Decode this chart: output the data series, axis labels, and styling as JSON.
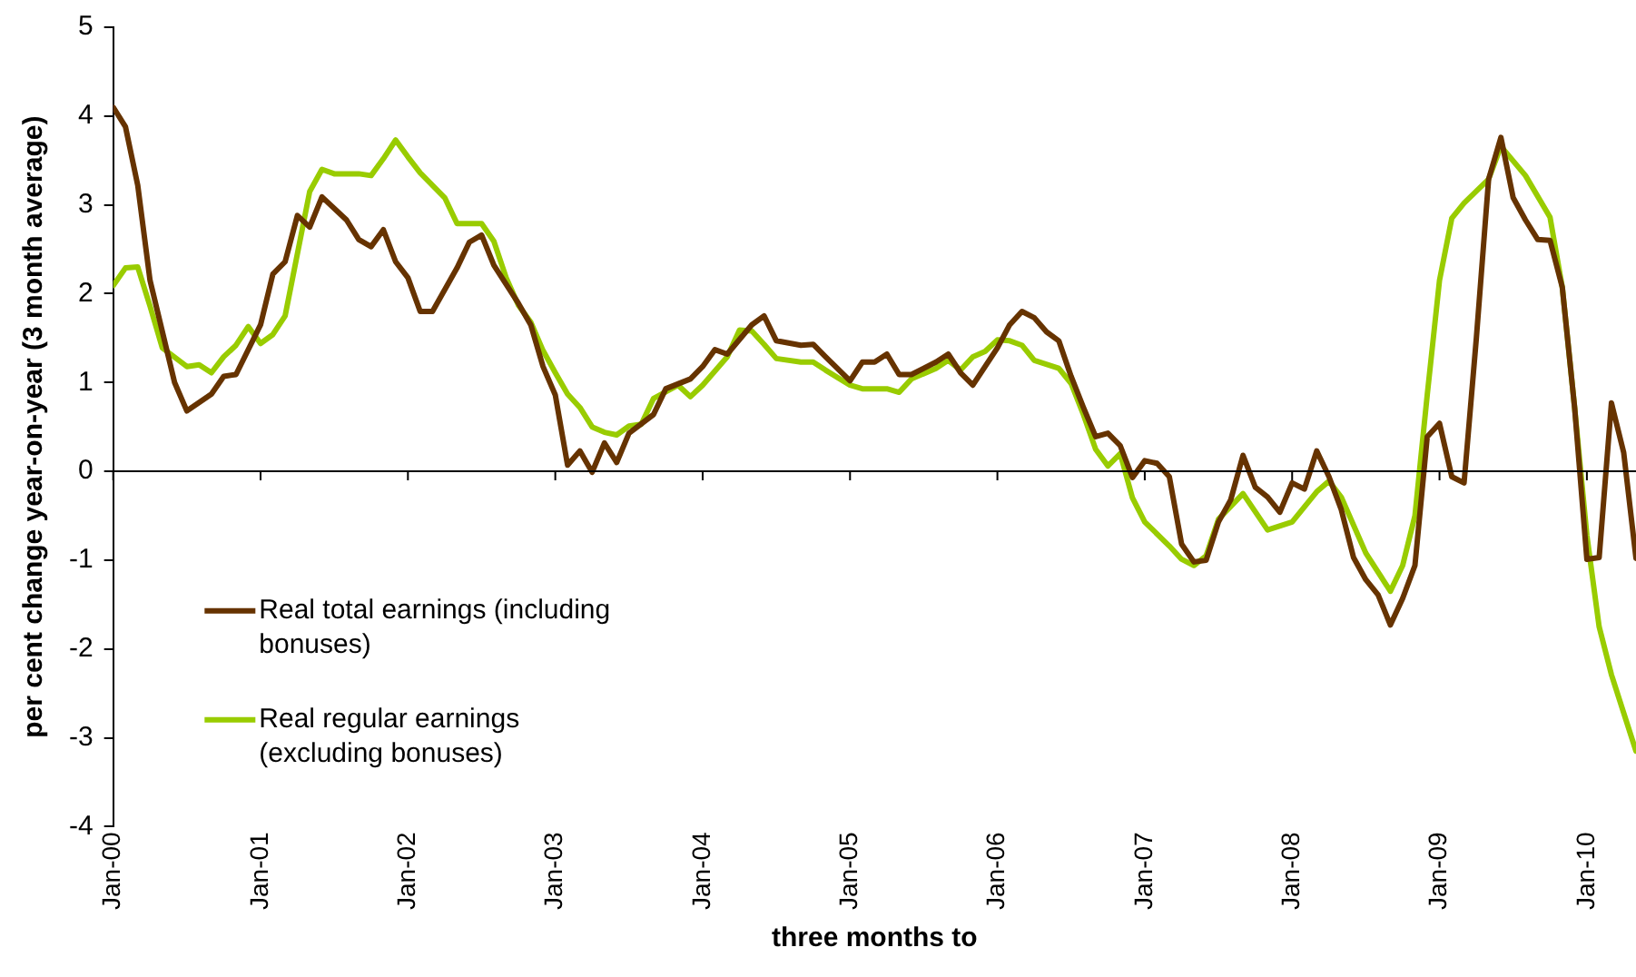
{
  "chart_data": {
    "type": "line",
    "xlabel": "three months to",
    "ylabel": "per cent change year-on-year (3 month average)",
    "xlim": [
      "2000-01",
      "2010-05"
    ],
    "ylim": [
      -4,
      5
    ],
    "yticks": [
      -4,
      -3,
      -2,
      -1,
      0,
      1,
      2,
      3,
      4,
      5
    ],
    "xticks": [
      {
        "value": "2000-01",
        "label": "Jan-00"
      },
      {
        "value": "2001-01",
        "label": "Jan-01"
      },
      {
        "value": "2002-01",
        "label": "Jan-02"
      },
      {
        "value": "2003-01",
        "label": "Jan-03"
      },
      {
        "value": "2004-01",
        "label": "Jan-04"
      },
      {
        "value": "2005-01",
        "label": "Jan-05"
      },
      {
        "value": "2006-01",
        "label": "Jan-06"
      },
      {
        "value": "2007-01",
        "label": "Jan-07"
      },
      {
        "value": "2008-01",
        "label": "Jan-08"
      },
      {
        "value": "2009-01",
        "label": "Jan-09"
      },
      {
        "value": "2010-01",
        "label": "Jan-10"
      }
    ],
    "grid": false,
    "legend": "bottom left",
    "marker": "none",
    "line_style": "solid",
    "ref_lines": [
      {
        "axis": "y",
        "value": 0,
        "color": "#000000"
      }
    ],
    "series": [
      {
        "name": "Real total earnings (including bonuses)",
        "color": "#663300",
        "x": [
          "2000-01",
          "2000-02",
          "2000-03",
          "2000-04",
          "2000-06",
          "2000-07",
          "2000-09",
          "2000-10",
          "2000-11",
          "2001-01",
          "2001-02",
          "2001-03",
          "2001-04",
          "2001-05",
          "2001-06",
          "2001-08",
          "2001-09",
          "2001-10",
          "2001-11",
          "2001-12",
          "2002-01",
          "2002-02",
          "2002-03",
          "2002-05",
          "2002-06",
          "2002-07",
          "2002-08",
          "2002-10",
          "2002-11",
          "2002-12",
          "2003-01",
          "2003-02",
          "2003-03",
          "2003-04",
          "2003-05",
          "2003-06",
          "2003-07",
          "2003-09",
          "2003-10",
          "2003-12",
          "2004-01",
          "2004-02",
          "2004-03",
          "2004-05",
          "2004-06",
          "2004-07",
          "2004-09",
          "2004-10",
          "2004-11",
          "2005-01",
          "2005-02",
          "2005-03",
          "2005-04",
          "2005-05",
          "2005-06",
          "2005-08",
          "2005-09",
          "2005-10",
          "2005-11",
          "2006-01",
          "2006-02",
          "2006-03",
          "2006-04",
          "2006-05",
          "2006-06",
          "2006-07",
          "2006-08",
          "2006-09",
          "2006-10",
          "2006-11",
          "2006-12",
          "2007-01",
          "2007-02",
          "2007-03",
          "2007-04",
          "2007-05",
          "2007-06",
          "2007-07",
          "2007-08",
          "2007-09",
          "2007-10",
          "2007-11",
          "2007-12",
          "2008-01",
          "2008-02",
          "2008-03",
          "2008-04",
          "2008-05",
          "2008-06",
          "2008-07",
          "2008-08",
          "2008-09",
          "2008-10",
          "2008-11",
          "2008-12",
          "2009-01",
          "2009-02",
          "2009-03",
          "2009-04",
          "2009-05",
          "2009-06",
          "2009-07",
          "2009-08",
          "2009-09",
          "2009-10",
          "2009-11",
          "2009-12",
          "2010-01",
          "2010-02",
          "2010-03",
          "2010-04",
          "2010-05"
        ],
        "values": [
          4.1,
          3.88,
          3.22,
          2.15,
          1.0,
          0.68,
          0.87,
          1.07,
          1.09,
          1.65,
          2.22,
          2.36,
          2.88,
          2.75,
          3.09,
          2.83,
          2.61,
          2.53,
          2.72,
          2.36,
          2.18,
          1.8,
          1.8,
          2.29,
          2.58,
          2.66,
          2.32,
          1.89,
          1.65,
          1.18,
          0.86,
          0.07,
          0.23,
          -0.01,
          0.32,
          0.1,
          0.43,
          0.64,
          0.93,
          1.04,
          1.18,
          1.37,
          1.32,
          1.65,
          1.75,
          1.47,
          1.42,
          1.43,
          1.29,
          1.02,
          1.23,
          1.23,
          1.32,
          1.09,
          1.09,
          1.23,
          1.32,
          1.11,
          0.97,
          1.39,
          1.65,
          1.8,
          1.73,
          1.57,
          1.47,
          1.07,
          0.72,
          0.39,
          0.43,
          0.29,
          -0.07,
          0.12,
          0.09,
          -0.06,
          -0.82,
          -1.02,
          -1.0,
          -0.57,
          -0.32,
          0.18,
          -0.18,
          -0.29,
          -0.46,
          -0.13,
          -0.2,
          0.23,
          -0.06,
          -0.43,
          -0.97,
          -1.22,
          -1.39,
          -1.73,
          -1.43,
          -1.06,
          0.39,
          0.54,
          -0.06,
          -0.13,
          1.5,
          3.29,
          3.76,
          3.08,
          2.83,
          2.61,
          2.6,
          2.07,
          0.72,
          -0.99,
          -0.97,
          0.77,
          0.21,
          -0.98
        ]
      },
      {
        "name": "Real regular earnings (excluding bonuses)",
        "color": "#99cc00",
        "x": [
          "2000-01",
          "2000-02",
          "2000-03",
          "2000-04",
          "2000-05",
          "2000-07",
          "2000-08",
          "2000-09",
          "2000-10",
          "2000-11",
          "2000-12",
          "2001-01",
          "2001-02",
          "2001-03",
          "2001-05",
          "2001-06",
          "2001-07",
          "2001-09",
          "2001-10",
          "2001-11",
          "2001-12",
          "2002-01",
          "2002-02",
          "2002-04",
          "2002-05",
          "2002-07",
          "2002-08",
          "2002-09",
          "2002-10",
          "2002-11",
          "2002-12",
          "2003-01",
          "2003-02",
          "2003-03",
          "2003-04",
          "2003-05",
          "2003-06",
          "2003-07",
          "2003-08",
          "2003-09",
          "2003-11",
          "2003-12",
          "2004-01",
          "2004-03",
          "2004-04",
          "2004-05",
          "2004-06",
          "2004-07",
          "2004-09",
          "2004-10",
          "2004-11",
          "2005-01",
          "2005-02",
          "2005-04",
          "2005-05",
          "2005-06",
          "2005-08",
          "2005-09",
          "2005-10",
          "2005-11",
          "2005-12",
          "2006-01",
          "2006-02",
          "2006-03",
          "2006-04",
          "2006-06",
          "2006-07",
          "2006-08",
          "2006-09",
          "2006-10",
          "2006-11",
          "2006-12",
          "2007-01",
          "2007-03",
          "2007-04",
          "2007-05",
          "2007-06",
          "2007-07",
          "2007-09",
          "2007-11",
          "2008-01",
          "2008-03",
          "2008-04",
          "2008-05",
          "2008-07",
          "2008-09",
          "2008-10",
          "2008-11",
          "2008-12",
          "2009-01",
          "2009-02",
          "2009-03",
          "2009-05",
          "2009-06",
          "2009-08",
          "2009-10",
          "2009-11",
          "2009-12",
          "2010-01",
          "2010-02",
          "2010-03",
          "2010-05"
        ],
        "values": [
          2.09,
          2.29,
          2.3,
          1.86,
          1.39,
          1.18,
          1.2,
          1.11,
          1.29,
          1.42,
          1.63,
          1.44,
          1.54,
          1.75,
          3.15,
          3.4,
          3.35,
          3.35,
          3.33,
          3.52,
          3.73,
          3.54,
          3.36,
          3.08,
          2.79,
          2.79,
          2.59,
          2.18,
          1.87,
          1.68,
          1.36,
          1.11,
          0.87,
          0.72,
          0.5,
          0.44,
          0.41,
          0.51,
          0.53,
          0.82,
          0.97,
          0.84,
          0.97,
          1.29,
          1.59,
          1.58,
          1.43,
          1.27,
          1.23,
          1.23,
          1.14,
          0.97,
          0.93,
          0.93,
          0.89,
          1.04,
          1.16,
          1.25,
          1.14,
          1.29,
          1.35,
          1.48,
          1.47,
          1.42,
          1.25,
          1.16,
          0.99,
          0.64,
          0.25,
          0.06,
          0.2,
          -0.3,
          -0.57,
          -0.84,
          -0.99,
          -1.06,
          -0.95,
          -0.54,
          -0.25,
          -0.66,
          -0.57,
          -0.23,
          -0.11,
          -0.29,
          -0.92,
          -1.35,
          -1.06,
          -0.5,
          0.86,
          2.15,
          2.85,
          3.02,
          3.29,
          3.66,
          3.33,
          2.86,
          2.07,
          0.72,
          -0.72,
          -1.75,
          -2.29,
          -3.15
        ]
      }
    ]
  }
}
